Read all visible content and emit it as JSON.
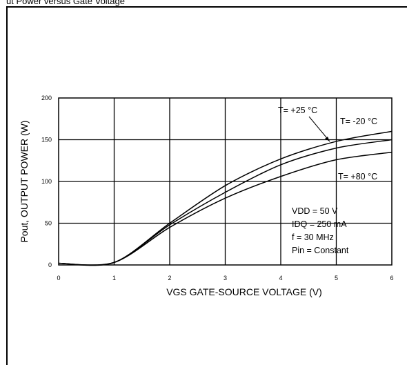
{
  "caption": "ut Power versus Gate Voltage",
  "chart_data": {
    "type": "line",
    "xlabel": "VGS GATE-SOURCE VOLTAGE (V)",
    "ylabel": "Pout, OUTPUT POWER (W)",
    "xlim": [
      0,
      6
    ],
    "ylim": [
      0,
      200
    ],
    "xticks": [
      "0",
      "1",
      "2",
      "3",
      "4",
      "5",
      "6"
    ],
    "yticks": [
      "0",
      "50",
      "100",
      "150",
      "200"
    ],
    "grid": true,
    "series": [
      {
        "name": "T= -20 °C",
        "x": [
          0,
          1,
          2,
          3,
          4,
          5,
          6
        ],
        "y": [
          2,
          3,
          50,
          95,
          127,
          148,
          160
        ]
      },
      {
        "name": "T= +25 °C",
        "x": [
          0,
          1,
          2,
          3,
          4,
          5,
          6
        ],
        "y": [
          2,
          3,
          48,
          87,
          120,
          140,
          150
        ]
      },
      {
        "name": "T= +80 °C",
        "x": [
          0,
          1,
          2,
          3,
          4,
          5,
          6
        ],
        "y": [
          2,
          3,
          45,
          80,
          106,
          126,
          135
        ]
      }
    ],
    "conditions": [
      "VDD = 50 V",
      "IDQ = 250 mA",
      "f = 30 MHz",
      "Pin = Constant"
    ]
  }
}
